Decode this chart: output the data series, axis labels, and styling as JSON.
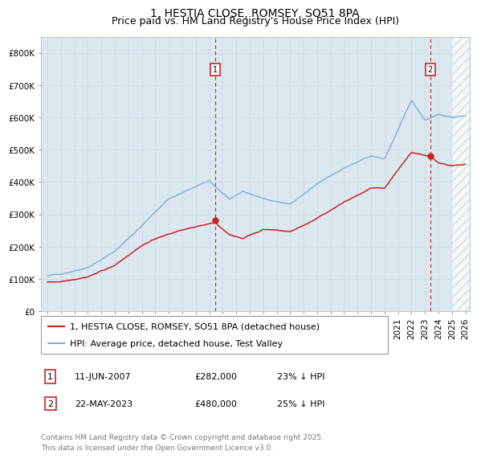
{
  "title": "1, HESTIA CLOSE, ROMSEY, SO51 8PA",
  "subtitle": "Price paid vs. HM Land Registry's House Price Index (HPI)",
  "ylim": [
    0,
    850000
  ],
  "yticks": [
    0,
    100000,
    200000,
    300000,
    400000,
    500000,
    600000,
    700000,
    800000
  ],
  "ytick_labels": [
    "£0",
    "£100K",
    "£200K",
    "£300K",
    "£400K",
    "£500K",
    "£600K",
    "£700K",
    "£800K"
  ],
  "hpi_color": "#7ab0d4",
  "price_color": "#cc2222",
  "grid_color": "#c8d8e8",
  "background_color": "#dce8f0",
  "hatch_color": "#c0d0e0",
  "marker1_year": 2007.44,
  "marker2_year": 2023.38,
  "marker1_price": 282000,
  "marker2_price": 480000,
  "annotation1": "1",
  "annotation2": "2",
  "legend1": "1, HESTIA CLOSE, ROMSEY, SO51 8PA (detached house)",
  "legend2": "HPI: Average price, detached house, Test Valley",
  "table_row1": [
    "1",
    "11-JUN-2007",
    "£282,000",
    "23% ↓ HPI"
  ],
  "table_row2": [
    "2",
    "22-MAY-2023",
    "£480,000",
    "25% ↓ HPI"
  ],
  "footnote": "Contains HM Land Registry data © Crown copyright and database right 2025.\nThis data is licensed under the Open Government Licence v3.0.",
  "title_fontsize": 10,
  "subtitle_fontsize": 9,
  "tick_fontsize": 7.5,
  "legend_fontsize": 8,
  "table_fontsize": 8,
  "footnote_fontsize": 6.5,
  "xlim_left": 1994.5,
  "xlim_right": 2026.3,
  "hatch_start": 2025.0
}
